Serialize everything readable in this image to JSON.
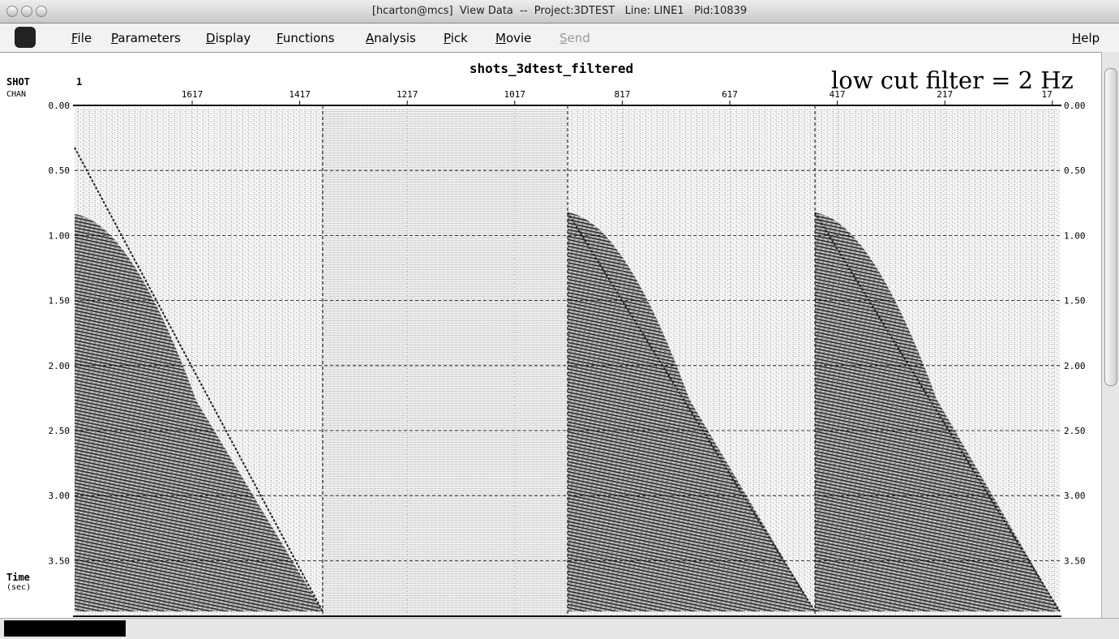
{
  "window": {
    "title": "[hcarton@mcs]  View Data  --  Project:3DTEST   Line: LINE1   Pid:10839"
  },
  "menu": {
    "items": [
      "File",
      "Parameters",
      "Display",
      "Functions",
      "Analysis",
      "Pick",
      "Movie",
      "Send"
    ],
    "help": "Help"
  },
  "plot": {
    "title": "shots_3dtest_filtered",
    "annotation": "low cut filter = 2 Hz",
    "shot_label": "SHOT",
    "shot_value": "1",
    "chan_label": "CHAN",
    "x_ticks": [
      "1617",
      "1417",
      "1217",
      "1017",
      "817",
      "617",
      "417",
      "217",
      "17"
    ],
    "y_ticks": [
      "0.00",
      "0.50",
      "1.00",
      "1.50",
      "2.00",
      "2.50",
      "3.00",
      "3.50"
    ],
    "y_axis_title": "Time",
    "y_axis_unit": "(sec)"
  }
}
